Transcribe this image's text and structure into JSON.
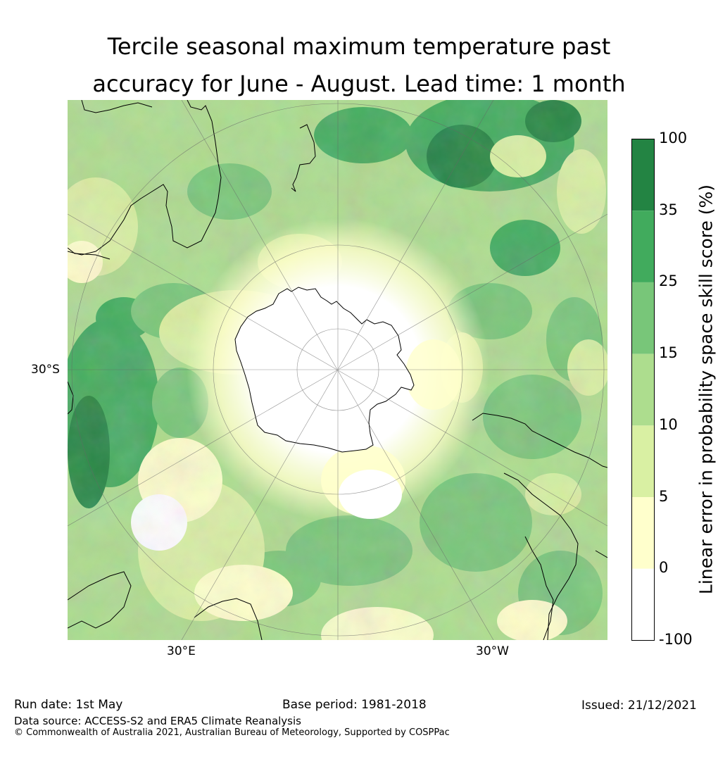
{
  "title": {
    "line1": "Tercile seasonal maximum temperature past",
    "line2": "accuracy for June - August. Lead time: 1 month"
  },
  "map": {
    "projection": "south-polar-stereographic",
    "lon_labels": [
      "30°E",
      "30°W"
    ],
    "lat_labels": [
      "30°S"
    ]
  },
  "colorbar": {
    "title": "Linear error in probability space skill score (%)",
    "ticks": [
      "100",
      "35",
      "25",
      "15",
      "10",
      "5",
      "0",
      "-100"
    ],
    "bins": [
      {
        "from": "-100",
        "to": "0",
        "color": "#ffffff"
      },
      {
        "from": "0",
        "to": "5",
        "color": "#ffffcc"
      },
      {
        "from": "5",
        "to": "10",
        "color": "#d9f0a3"
      },
      {
        "from": "10",
        "to": "15",
        "color": "#addd8e"
      },
      {
        "from": "15",
        "to": "25",
        "color": "#78c679"
      },
      {
        "from": "25",
        "to": "35",
        "color": "#41ab5d"
      },
      {
        "from": "35",
        "to": "100",
        "color": "#238443"
      }
    ]
  },
  "footer": {
    "run_date": "Run date: 1st May",
    "base_period": "Base period: 1981-2018",
    "issued": "Issued: 21/12/2021",
    "data_source": "Data source: ACCESS-S2 and ERA5 Climate Reanalysis",
    "copyright": "© Commonwealth of Australia 2021, Australian Bureau of Meteorology, Supported by COSPPac"
  }
}
